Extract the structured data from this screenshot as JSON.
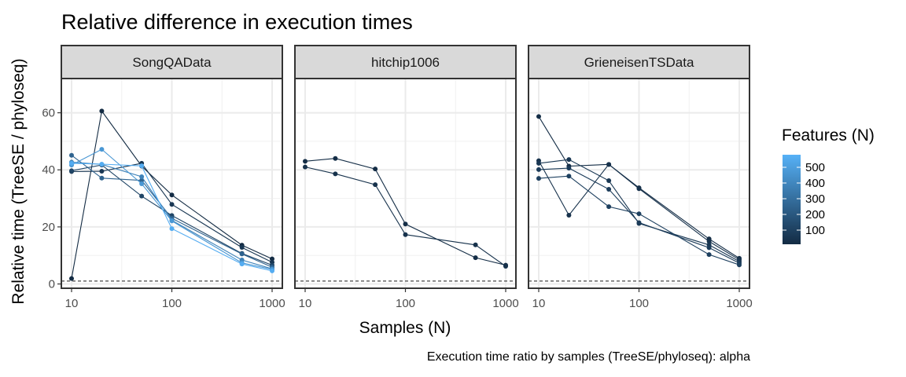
{
  "chart_data": {
    "type": "line",
    "title": "Relative difference in execution times",
    "xlabel": "Samples (N)",
    "ylabel": "Relative time (TreeSE / phyloseq)",
    "caption": "Execution time ratio by samples (TreeSE/phyloseq):  alpha",
    "x_scale": "log10",
    "xlim": [
      8.5,
      1180
    ],
    "ylim": [
      -1.5,
      72
    ],
    "x_ticks": [
      10,
      100,
      1000
    ],
    "x_tick_labels": [
      "10",
      "100",
      "1000"
    ],
    "y_ticks": [
      0,
      20,
      40,
      60
    ],
    "y_tick_labels": [
      "0",
      "20",
      "40",
      "60"
    ],
    "reference_line": 1,
    "grid": true,
    "color_scale": {
      "low": "#132b43",
      "high": "#56b1f7",
      "min": 10,
      "max": 580
    },
    "legend": {
      "title": "Features (N)",
      "ticks": [
        100,
        200,
        300,
        400,
        500
      ],
      "tick_labels": [
        "100",
        "200",
        "300",
        "400",
        "500"
      ],
      "position": "right"
    },
    "panels": [
      {
        "label": "SongQAData",
        "series": [
          {
            "features": 5,
            "x": [
              10,
              20,
              50,
              100,
              500,
              1000
            ],
            "y": [
              1.9,
              60.6,
              41.3,
              31.2,
              13.6,
              8.8
            ]
          },
          {
            "features": 60,
            "x": [
              10,
              20,
              50,
              100,
              500,
              1000
            ],
            "y": [
              39.4,
              39.5,
              42.3,
              27.9,
              12.8,
              7.6
            ]
          },
          {
            "features": 120,
            "x": [
              10,
              20,
              50,
              100,
              500,
              1000
            ],
            "y": [
              39.7,
              41.7,
              30.8,
              24.0,
              10.7,
              6.6
            ]
          },
          {
            "features": 250,
            "x": [
              10,
              20,
              50,
              100,
              500,
              1000
            ],
            "y": [
              45.1,
              37.1,
              36.3,
              23.0,
              10.5,
              5.9
            ]
          },
          {
            "features": 380,
            "x": [
              10,
              20,
              50,
              100,
              500,
              1000
            ],
            "y": [
              42.7,
              41.9,
              37.6,
              22.3,
              8.4,
              5.3
            ]
          },
          {
            "features": 470,
            "x": [
              10,
              20,
              50,
              100,
              500,
              1000
            ],
            "y": [
              41.7,
              47.2,
              35.1,
              22.1,
              7.4,
              5.1
            ]
          },
          {
            "features": 560,
            "x": [
              10,
              20,
              50,
              100,
              500,
              1000
            ],
            "y": [
              42.3,
              42.0,
              41.4,
              19.4,
              7.0,
              4.6
            ]
          }
        ]
      },
      {
        "label": "hitchip1006",
        "series": [
          {
            "features": 20,
            "x": [
              10,
              20,
              50,
              100,
              500,
              1000
            ],
            "y": [
              43.0,
              44.0,
              40.3,
              21.0,
              9.2,
              6.6
            ]
          },
          {
            "features": 40,
            "x": [
              10,
              20,
              50,
              100,
              500,
              1000
            ],
            "y": [
              41.0,
              38.6,
              34.8,
              17.3,
              13.7,
              6.2
            ]
          }
        ]
      },
      {
        "label": "GrieneisenTSData",
        "series": [
          {
            "features": 20,
            "x": [
              10,
              20,
              50,
              100,
              500,
              1000
            ],
            "y": [
              58.7,
              41.3,
              41.9,
              33.7,
              15.8,
              9.0
            ]
          },
          {
            "features": 40,
            "x": [
              10,
              20,
              50,
              100,
              500,
              1000
            ],
            "y": [
              43.2,
              24.1,
              41.9,
              33.4,
              14.9,
              8.5
            ]
          },
          {
            "features": 60,
            "x": [
              10,
              20,
              50,
              100,
              500,
              1000
            ],
            "y": [
              42.3,
              43.6,
              36.2,
              21.2,
              13.7,
              7.9
            ]
          },
          {
            "features": 80,
            "x": [
              10,
              20,
              50,
              100,
              500,
              1000
            ],
            "y": [
              40.1,
              40.6,
              33.2,
              21.5,
              12.7,
              7.3
            ]
          },
          {
            "features": 100,
            "x": [
              10,
              20,
              50,
              100,
              500,
              1000
            ],
            "y": [
              37.0,
              37.8,
              27.1,
              24.6,
              10.3,
              6.7
            ]
          }
        ]
      }
    ]
  }
}
